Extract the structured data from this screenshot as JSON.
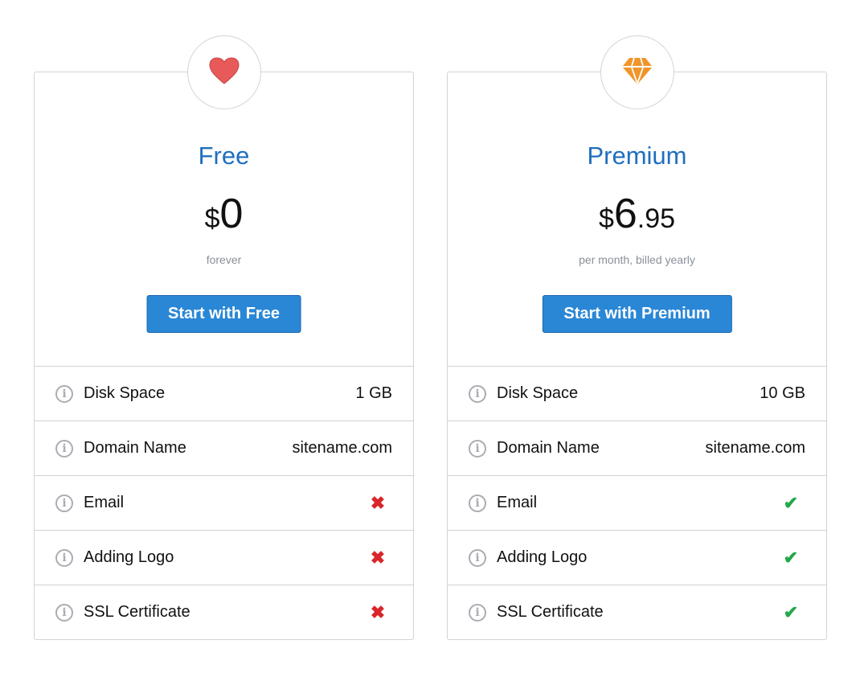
{
  "colors": {
    "accent": "#1f6fbf",
    "button": "#2a87d6",
    "yes": "#22a84a",
    "no": "#d9262b",
    "heart": "#e85a5a",
    "diamond": "#f0952a"
  },
  "plans": [
    {
      "icon": "heart-icon",
      "title": "Free",
      "currency": "$",
      "amount": "0",
      "cents": "",
      "period": "forever",
      "button": "Start with Free",
      "features": [
        {
          "label": "Disk Space",
          "value": "1 GB"
        },
        {
          "label": "Domain Name",
          "value": "sitename.com"
        },
        {
          "label": "Email",
          "included": false
        },
        {
          "label": "Adding Logo",
          "included": false
        },
        {
          "label": "SSL Certificate",
          "included": false
        }
      ]
    },
    {
      "icon": "diamond-icon",
      "title": "Premium",
      "currency": "$",
      "amount": "6",
      "cents": ".95",
      "period": "per month, billed yearly",
      "button": "Start with Premium",
      "features": [
        {
          "label": "Disk Space",
          "value": "10 GB"
        },
        {
          "label": "Domain Name",
          "value": "sitename.com"
        },
        {
          "label": "Email",
          "included": true
        },
        {
          "label": "Adding Logo",
          "included": true
        },
        {
          "label": "SSL Certificate",
          "included": true
        }
      ]
    }
  ]
}
